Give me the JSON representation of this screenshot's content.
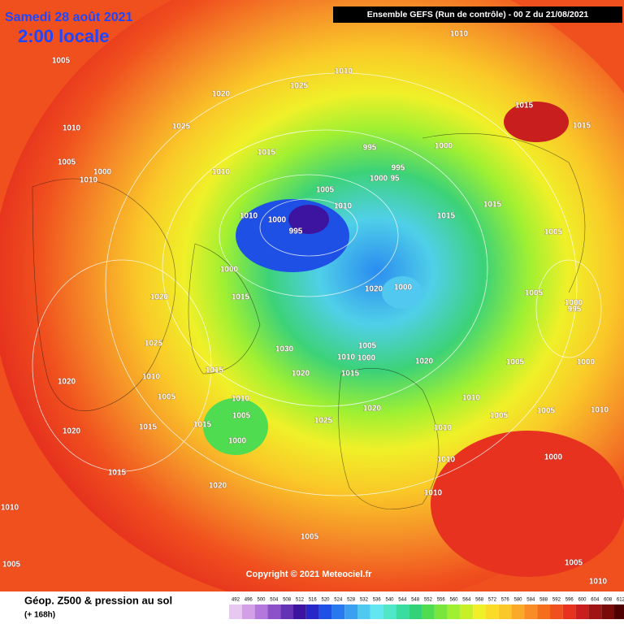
{
  "header": {
    "date": "Samedi 28 août 2021",
    "time": "2:00 locale",
    "run": "Ensemble GEFS  (Run de contrôle)  -  00 Z du 21/08/2021"
  },
  "copyright": "Copyright © 2021 Meteociel.fr",
  "legend": {
    "title": "Géop. Z500 & pression au sol",
    "subtitle": "(+ 168h)",
    "scale": [
      492,
      496,
      500,
      504,
      508,
      512,
      516,
      520,
      524,
      528,
      532,
      536,
      540,
      544,
      548,
      552,
      556,
      560,
      564,
      568,
      572,
      576,
      580,
      584,
      588,
      592,
      596,
      600,
      604,
      608,
      612
    ],
    "colors": [
      "#e6c8f0",
      "#d2a0e6",
      "#b478dc",
      "#8c50c8",
      "#6432b4",
      "#3c14a0",
      "#2828c8",
      "#1e50e6",
      "#2878f0",
      "#3ca0f0",
      "#50c8f0",
      "#64e6f0",
      "#50e6c8",
      "#3cdca0",
      "#32d278",
      "#50dc50",
      "#78e63c",
      "#a0f032",
      "#c8f028",
      "#f0f028",
      "#fadc28",
      "#fac828",
      "#faaa28",
      "#fa8c28",
      "#f56e1e",
      "#f0501e",
      "#e6321e",
      "#c81e1e",
      "#a01414",
      "#780a0a",
      "#500000"
    ]
  },
  "isobar_labels": [
    1010,
    1005,
    1010,
    1025,
    1020,
    1015,
    1025,
    1010,
    1015,
    1000,
    995,
    1015,
    1005,
    1000,
    1010,
    995,
    1000,
    95,
    1005,
    1010,
    1015,
    1010,
    1000,
    1015,
    995,
    1005,
    1000,
    1000,
    1020,
    1015,
    1005,
    1020,
    1000,
    995,
    1025,
    1030,
    1005,
    1010,
    1000,
    1005,
    1000,
    1020,
    1015,
    1020,
    1015,
    1010,
    1020,
    1005,
    1010,
    1010,
    1020,
    1005,
    1005,
    1005,
    1010,
    1025,
    1015,
    1015,
    1020,
    1010,
    1000,
    1010,
    1000,
    1015,
    1020,
    1010,
    1010,
    1010,
    1005,
    1005,
    1010,
    1005
  ]
}
